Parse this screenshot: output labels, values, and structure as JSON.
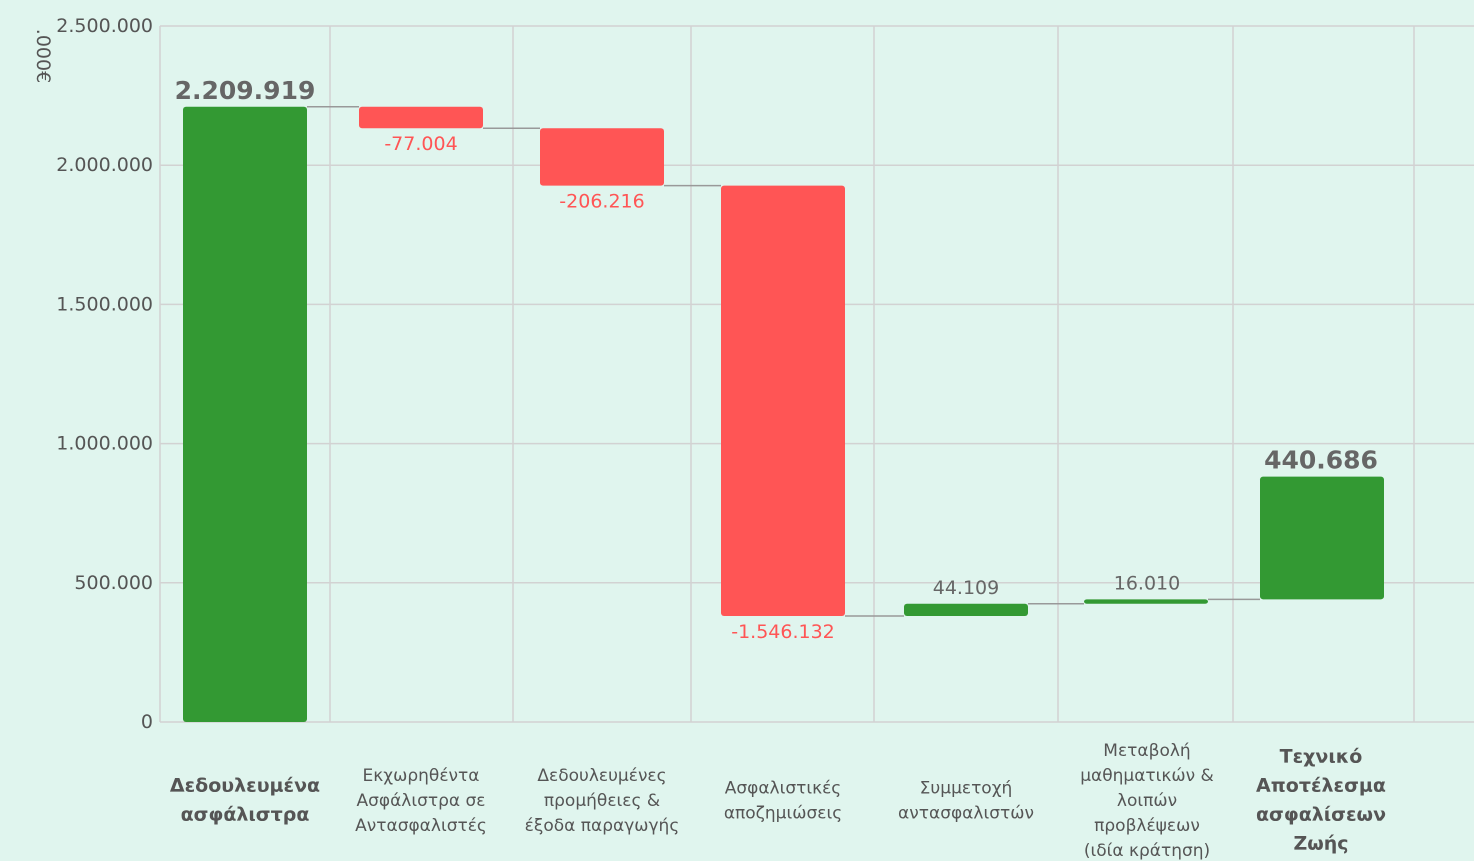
{
  "chart_data": {
    "type": "waterfall",
    "unit_label": ".000€",
    "ylim": [
      0,
      2500000
    ],
    "yticks": [
      "0",
      "500.000",
      "1.000.000",
      "1.500.000",
      "2.000.000",
      "2.500.000"
    ],
    "ytick_values": [
      0,
      500000,
      1000000,
      1500000,
      2000000,
      2500000
    ],
    "grid": true,
    "colors": {
      "total": "#339933",
      "increase": "#339933",
      "decrease": "#ff5555",
      "neutral_label": "#666666"
    },
    "categories": [
      {
        "label": [
          "Δεδουλευμένα",
          "ασφάλιστρα"
        ],
        "bold": true
      },
      {
        "label": [
          "Εκχωρηθέντα",
          "Ασφάλιστρα σε",
          "Αντασφαλιστές"
        ],
        "bold": false
      },
      {
        "label": [
          "Δεδουλευμένες",
          "προμήθειες &",
          "έξοδα παραγωγής"
        ],
        "bold": false
      },
      {
        "label": [
          "Ασφαλιστικές",
          "αποζημιώσεις"
        ],
        "bold": false
      },
      {
        "label": [
          "Συμμετοχή",
          "αντασφαλιστών"
        ],
        "bold": false
      },
      {
        "label": [
          "Μεταβολή",
          "μαθηματικών &",
          "λοιπών",
          "προβλέψεων",
          "(ιδία κράτηση)"
        ],
        "bold": false
      },
      {
        "label": [
          "Τεχνικό",
          "Αποτέλεσμα",
          "ασφαλίσεων",
          "Ζωής"
        ],
        "bold": true
      }
    ],
    "steps": [
      {
        "kind": "total",
        "value": 2209919,
        "label": "2.209.919"
      },
      {
        "kind": "delta",
        "value": -77004,
        "label": "-77.004"
      },
      {
        "kind": "delta",
        "value": -206216,
        "label": "-206.216"
      },
      {
        "kind": "delta",
        "value": -1546132,
        "label": "-1.546.132"
      },
      {
        "kind": "delta",
        "value": 44109,
        "label": "44.109"
      },
      {
        "kind": "delta",
        "value": 16010,
        "label": "16.010"
      },
      {
        "kind": "delta",
        "value": 440686,
        "label": "440.686",
        "emphasis": true
      }
    ]
  }
}
